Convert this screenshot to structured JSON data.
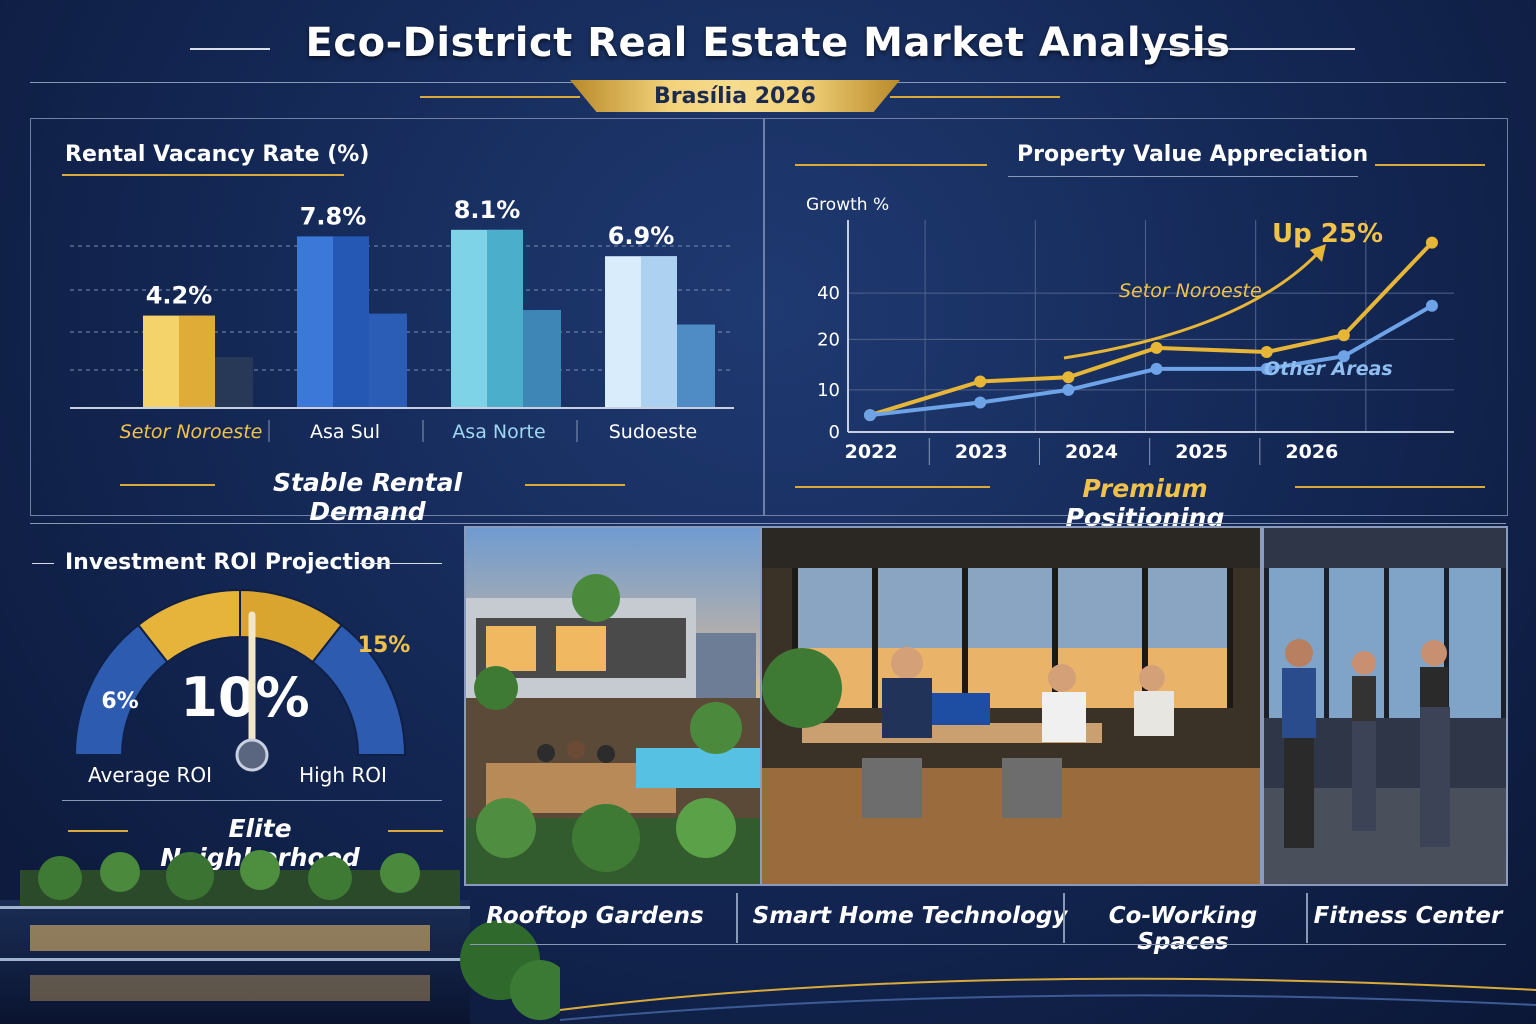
{
  "header": {
    "title": "Eco-District Real Estate Market Analysis",
    "subtitle": "Brasília 2026"
  },
  "colors": {
    "gold": "#e8b637",
    "blue": "#2f63c2",
    "teal": "#4fb4d0",
    "light_blue": "#a9d2f0",
    "navy": "#132652"
  },
  "vacancy": {
    "title": "Rental Vacancy Rate (%)",
    "caption": "Stable Rental Demand",
    "chart_data": {
      "type": "bar",
      "title": "Rental Vacancy Rate (%)",
      "categories": [
        "Setor Noroeste",
        "Asa Sul",
        "Asa Norte",
        "Sudoeste"
      ],
      "values": [
        4.2,
        7.8,
        8.1,
        6.9
      ],
      "value_labels": [
        "4.2%",
        "7.8%",
        "8.1%",
        "6.9%"
      ],
      "xlabel": "",
      "ylabel": "",
      "grid": true
    }
  },
  "appreciation": {
    "title": "Property Value Appreciation",
    "caption_gold": "Premium",
    "caption_white": "Positioning",
    "chart_data": {
      "type": "line",
      "ylabel": "Growth %",
      "x": [
        "2022",
        "2023",
        "2024",
        "2025",
        "2026"
      ],
      "yticks": [
        0,
        10,
        20,
        40
      ],
      "series": [
        {
          "name": "Setor Noroeste",
          "color": "#e8b637",
          "points": [
            [
              2021.5,
              4
            ],
            [
              2022.5,
              12
            ],
            [
              2023.3,
              13
            ],
            [
              2024.1,
              20
            ],
            [
              2025.1,
              19
            ],
            [
              2025.8,
              23
            ],
            [
              2026.6,
              45
            ]
          ]
        },
        {
          "name": "Other Areas",
          "color": "#6ea3e8",
          "points": [
            [
              2021.5,
              4
            ],
            [
              2022.5,
              7
            ],
            [
              2023.3,
              10
            ],
            [
              2024.1,
              15
            ],
            [
              2025.1,
              15
            ],
            [
              2025.8,
              18
            ],
            [
              2026.6,
              30
            ]
          ]
        }
      ],
      "annotation": "Up 25%",
      "grid": true
    }
  },
  "roi": {
    "title": "Investment ROI Projection",
    "caption": "Elite Neighborhood",
    "chart_data": {
      "type": "gauge",
      "value": 10,
      "value_label": "10%",
      "min_label": "6%",
      "max_label": "15%",
      "left_label": "Average ROI",
      "right_label": "High ROI"
    }
  },
  "features": [
    "Rooftop Gardens",
    "Smart Home Technology",
    "Co-Working Spaces",
    "Fitness Center"
  ]
}
